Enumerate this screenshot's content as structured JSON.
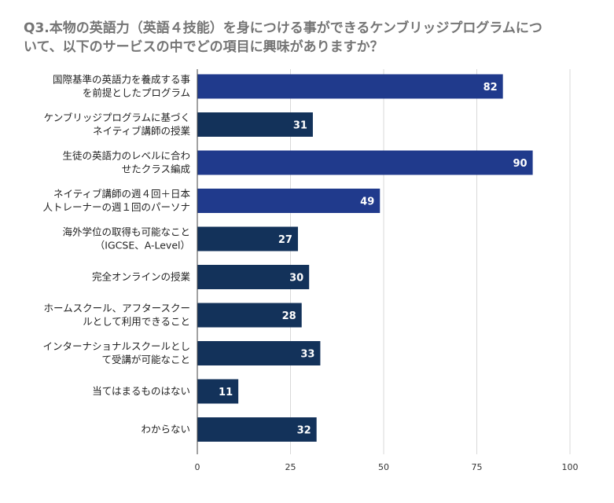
{
  "chart_data": {
    "type": "bar",
    "orientation": "horizontal",
    "title_lines": [
      "Q3.本物の英語力（英語４技能）を身につける事ができるケンブリッジプログラムにつ",
      "いて、以下のサービスの中でどの項目に興味がありますか？"
    ],
    "categories": [
      [
        "国際基準の英語力を養成する事",
        "を前提としたプログラム"
      ],
      [
        "ケンブリッジプログラムに基づく",
        "ネイティブ講師の授業"
      ],
      [
        "生徒の英語力のレベルに合わ",
        "せたクラス編成"
      ],
      [
        "ネイティブ講師の週４回＋日本",
        "人トレーナーの週１回のパーソナ"
      ],
      [
        "海外学位の取得も可能なこと",
        "（IGCSE、A-Level）"
      ],
      [
        "完全オンラインの授業"
      ],
      [
        "ホームスクール、アフタースクー",
        "ルとして利用できること"
      ],
      [
        "インターナショナルスクールとし",
        "て受講が可能なこと"
      ],
      [
        "当てはまるものはない"
      ],
      [
        "わからない"
      ]
    ],
    "values": [
      82,
      31,
      90,
      49,
      27,
      30,
      28,
      33,
      11,
      32
    ],
    "value_labels": [
      "82",
      "31",
      "90",
      "49",
      "27",
      "30",
      "28",
      "33",
      "11",
      "32"
    ],
    "highlight": [
      true,
      false,
      true,
      true,
      false,
      false,
      false,
      false,
      false,
      false
    ],
    "xlim": [
      0,
      100
    ],
    "ticks": [
      0,
      25,
      50,
      75,
      100
    ],
    "tick_labels": [
      "0",
      "25",
      "50",
      "75",
      "100"
    ],
    "grid": true,
    "colors": {
      "highlight": "#203a8c",
      "normal": "#13325a",
      "grid": "#d9d9d9",
      "axis": "#444444"
    }
  }
}
